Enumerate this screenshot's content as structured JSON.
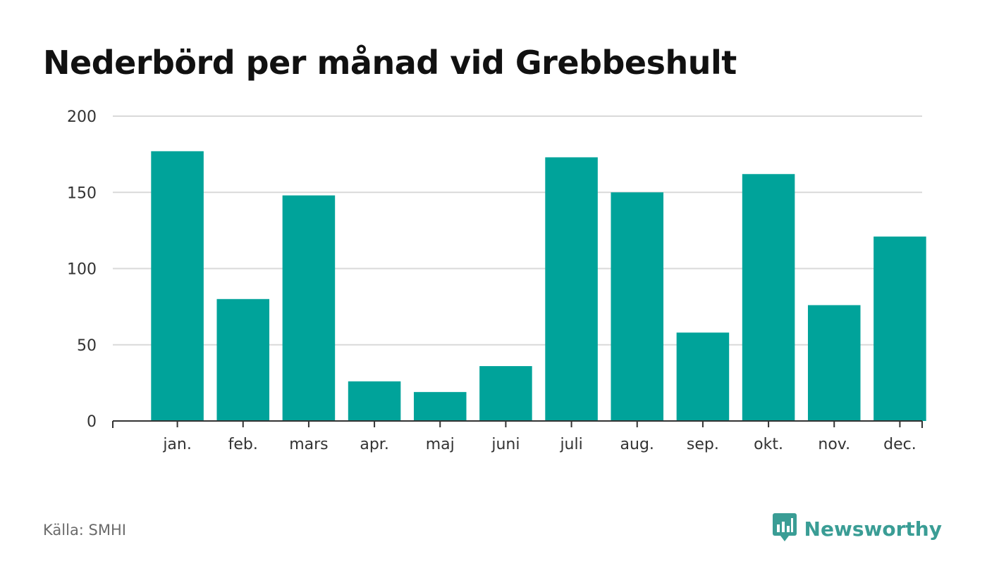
{
  "chart_data": {
    "type": "bar",
    "title": "Nederbörd per månad vid Grebbeshult",
    "categories": [
      "jan.",
      "feb.",
      "mars",
      "apr.",
      "maj",
      "juni",
      "juli",
      "aug.",
      "sep.",
      "okt.",
      "nov.",
      "dec."
    ],
    "values": [
      177,
      80,
      148,
      26,
      19,
      36,
      173,
      150,
      58,
      162,
      76,
      121
    ],
    "ylim": [
      0,
      200
    ],
    "yticks": [
      0,
      50,
      100,
      150,
      200
    ],
    "grid": true,
    "bar_color": "#00a39a"
  },
  "footer": {
    "source": "Källa: SMHI",
    "brand": "Newsworthy"
  },
  "brand_icon": "newsworthy-logo-icon"
}
